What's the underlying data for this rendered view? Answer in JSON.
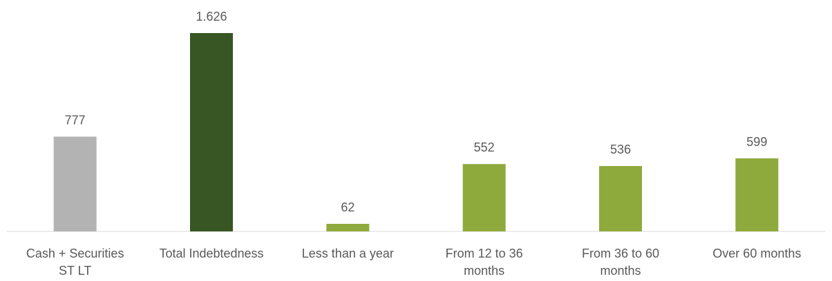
{
  "chart_data": {
    "type": "bar",
    "title": "",
    "xlabel": "",
    "ylabel": "",
    "categories": [
      [
        "Cash + Securities",
        "ST LT"
      ],
      [
        "Total Indebtedness"
      ],
      [
        "Less than a year"
      ],
      [
        "From 12 to 36",
        "months"
      ],
      [
        "From 36 to 60",
        "months"
      ],
      [
        "Over 60 months"
      ]
    ],
    "values": [
      777,
      1626,
      62,
      552,
      536,
      599
    ],
    "value_labels": [
      "777",
      "1.626",
      "62",
      "552",
      "536",
      "599"
    ],
    "colors": [
      "#b3b3b3",
      "#375623",
      "#8faa3c",
      "#8faa3c",
      "#8faa3c",
      "#8faa3c"
    ],
    "ylim": [
      0,
      1800
    ],
    "grid": false,
    "legend": "none"
  }
}
